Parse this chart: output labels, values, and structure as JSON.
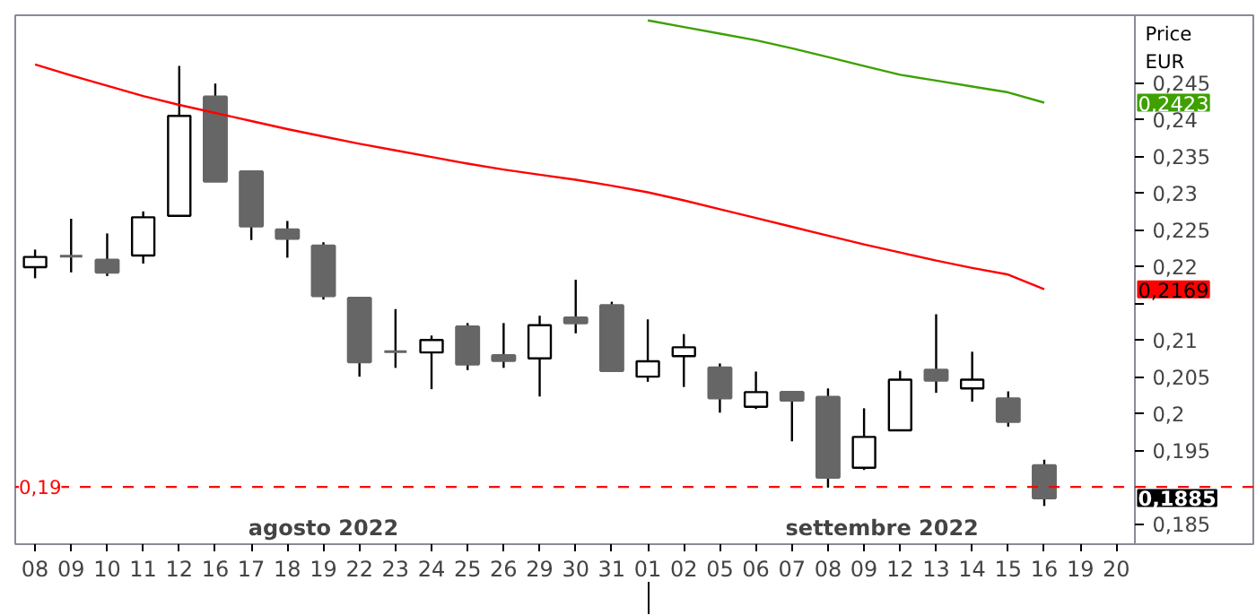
{
  "chart_data": {
    "type": "candlestick",
    "ylabel": "Price EUR",
    "categories": [
      "08",
      "09",
      "10",
      "11",
      "12",
      "16",
      "17",
      "18",
      "19",
      "22",
      "23",
      "24",
      "25",
      "26",
      "29",
      "30",
      "31",
      "01",
      "02",
      "05",
      "06",
      "07",
      "08",
      "09",
      "12",
      "13",
      "14",
      "15",
      "16",
      "19",
      "20"
    ],
    "ohlc": [
      [
        0.2199,
        0.2223,
        0.2184,
        0.2213
      ],
      [
        0.2214,
        0.2265,
        0.2192,
        0.2214
      ],
      [
        0.2209,
        0.2245,
        0.2187,
        0.2192
      ],
      [
        0.2215,
        0.2275,
        0.2204,
        0.2267
      ],
      [
        0.2269,
        0.2473,
        0.2269,
        0.2405
      ],
      [
        0.2431,
        0.2449,
        0.2315,
        0.2316
      ],
      [
        0.2329,
        0.2329,
        0.2236,
        0.2255
      ],
      [
        0.225,
        0.2262,
        0.2212,
        0.2238
      ],
      [
        0.2228,
        0.2233,
        0.2155,
        0.216
      ],
      [
        0.2157,
        0.2157,
        0.205,
        0.207
      ],
      [
        0.2084,
        0.2142,
        0.2062,
        0.2084
      ],
      [
        0.2083,
        0.2106,
        0.2033,
        0.21
      ],
      [
        0.2118,
        0.2123,
        0.2059,
        0.2067
      ],
      [
        0.2079,
        0.2123,
        0.2062,
        0.2072
      ],
      [
        0.2075,
        0.2133,
        0.2023,
        0.212
      ],
      [
        0.213,
        0.2182,
        0.2109,
        0.2123
      ],
      [
        0.2147,
        0.2152,
        0.2057,
        0.2058
      ],
      [
        0.205,
        0.2128,
        0.2043,
        0.2071
      ],
      [
        0.2078,
        0.2108,
        0.2036,
        0.209
      ],
      [
        0.2062,
        0.2068,
        0.2001,
        0.2021
      ],
      [
        0.2009,
        0.2057,
        0.2006,
        0.2029
      ],
      [
        0.2029,
        0.2029,
        0.1962,
        0.2018
      ],
      [
        0.2022,
        0.2034,
        0.1899,
        0.1913
      ],
      [
        0.1926,
        0.2007,
        0.1923,
        0.1968
      ],
      [
        0.1977,
        0.2058,
        0.1977,
        0.2046
      ],
      [
        0.2059,
        0.2135,
        0.2028,
        0.2045
      ],
      [
        0.2034,
        0.2084,
        0.2016,
        0.2046
      ],
      [
        0.202,
        0.203,
        0.1982,
        0.1989
      ],
      [
        0.1929,
        0.1937,
        0.1874,
        0.1885
      ],
      null,
      null
    ],
    "series": [
      {
        "type": "line",
        "color": "#ff0000",
        "values": [
          0.2475,
          0.246,
          0.2446,
          0.2432,
          0.242,
          0.2409,
          0.2398,
          0.2387,
          0.2377,
          0.2367,
          0.2358,
          0.2349,
          0.234,
          0.2332,
          0.2325,
          0.2318,
          0.231,
          0.2301,
          0.229,
          0.2278,
          0.2266,
          0.2254,
          0.2242,
          0.223,
          0.2219,
          0.2208,
          0.2198,
          0.2189,
          0.2169,
          null,
          null
        ]
      },
      {
        "type": "line",
        "color": "#3fa000",
        "values": [
          null,
          null,
          null,
          null,
          null,
          null,
          null,
          null,
          null,
          null,
          null,
          null,
          null,
          null,
          null,
          null,
          null,
          0.2535,
          0.2526,
          0.2517,
          0.2508,
          0.2497,
          0.2485,
          0.2473,
          0.2461,
          0.2453,
          0.2445,
          0.2437,
          0.2423,
          null,
          null
        ]
      }
    ],
    "ylim": [
      0.1822,
      0.2542
    ],
    "yticks": [
      {
        "value": 0.185,
        "label": "0,185"
      },
      {
        "value": 0.19,
        "label": null
      },
      {
        "value": 0.195,
        "label": "0,195"
      },
      {
        "value": 0.2,
        "label": "0,2"
      },
      {
        "value": 0.205,
        "label": "0,205"
      },
      {
        "value": 0.21,
        "label": "0,21"
      },
      {
        "value": 0.215,
        "label": null
      },
      {
        "value": 0.22,
        "label": "0,22"
      },
      {
        "value": 0.225,
        "label": "0,225"
      },
      {
        "value": 0.23,
        "label": "0,23"
      },
      {
        "value": 0.235,
        "label": "0,235"
      },
      {
        "value": 0.24,
        "label": "0,24"
      },
      {
        "value": 0.245,
        "label": "0,245"
      }
    ],
    "ref_lines": [
      {
        "axis": "y",
        "value": 0.19,
        "label": "0,19",
        "color": "#ff0000",
        "line_style": "dashed"
      }
    ],
    "annotations": [
      "agosto 2022",
      "settembre 2022",
      "0,2169",
      "0,2423",
      "0,1885"
    ],
    "grid": false
  }
}
